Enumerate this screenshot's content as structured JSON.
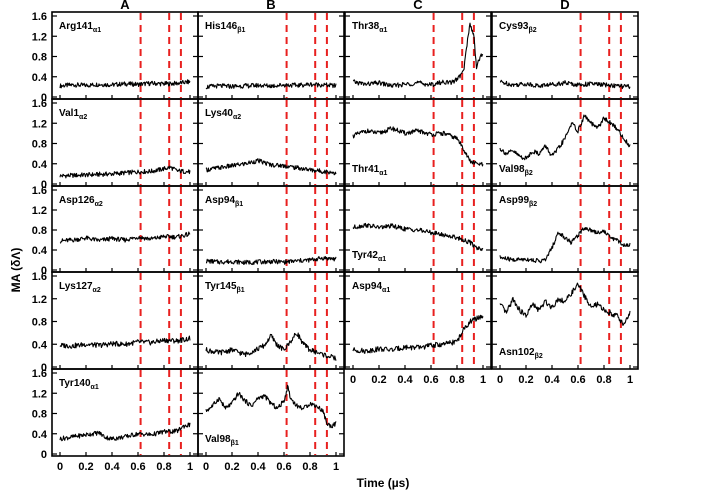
{
  "chart_data": {
    "type": "line",
    "ylabel": "MA (δΛ)",
    "xlabel": "Time  (µs)",
    "xlim": [
      0,
      1
    ],
    "ylim": [
      0,
      1.6
    ],
    "x_ticks": [
      "0",
      "0.2",
      "0.4",
      "0.6",
      "0.8",
      "1"
    ],
    "y_ticks": [
      "0",
      "0.4",
      "0.8",
      "1.2",
      "1.6"
    ],
    "dashed_vertical_lines_x": [
      0.62,
      0.84,
      0.93
    ],
    "columns": [
      "A",
      "B",
      "C",
      "D"
    ],
    "panels": [
      {
        "col": 0,
        "row": 0,
        "label": "Arg141",
        "sub": "α1",
        "label_pos": "top-left",
        "trace": [
          [
            0,
            0.22
          ],
          [
            0.1,
            0.24
          ],
          [
            0.2,
            0.23
          ],
          [
            0.3,
            0.25
          ],
          [
            0.4,
            0.24
          ],
          [
            0.5,
            0.26
          ],
          [
            0.6,
            0.25
          ],
          [
            0.7,
            0.27
          ],
          [
            0.8,
            0.26
          ],
          [
            0.9,
            0.27
          ],
          [
            1,
            0.3
          ]
        ]
      },
      {
        "col": 0,
        "row": 1,
        "label": "Val1",
        "sub": "α2",
        "label_pos": "top-left",
        "trace": [
          [
            0,
            0.16
          ],
          [
            0.1,
            0.17
          ],
          [
            0.2,
            0.18
          ],
          [
            0.3,
            0.19
          ],
          [
            0.4,
            0.2
          ],
          [
            0.5,
            0.22
          ],
          [
            0.6,
            0.24
          ],
          [
            0.7,
            0.25
          ],
          [
            0.8,
            0.3
          ],
          [
            0.85,
            0.33
          ],
          [
            0.9,
            0.26
          ],
          [
            1,
            0.24
          ]
        ]
      },
      {
        "col": 0,
        "row": 2,
        "label": "Asp126",
        "sub": "α2",
        "label_pos": "top-left",
        "trace": [
          [
            0,
            0.58
          ],
          [
            0.1,
            0.6
          ],
          [
            0.2,
            0.64
          ],
          [
            0.3,
            0.59
          ],
          [
            0.4,
            0.63
          ],
          [
            0.5,
            0.6
          ],
          [
            0.6,
            0.66
          ],
          [
            0.7,
            0.62
          ],
          [
            0.8,
            0.67
          ],
          [
            0.9,
            0.66
          ],
          [
            1,
            0.72
          ]
        ]
      },
      {
        "col": 0,
        "row": 3,
        "label": "Lys127",
        "sub": "α2",
        "label_pos": "top-left",
        "trace": [
          [
            0,
            0.38
          ],
          [
            0.1,
            0.37
          ],
          [
            0.2,
            0.4
          ],
          [
            0.3,
            0.38
          ],
          [
            0.4,
            0.41
          ],
          [
            0.5,
            0.4
          ],
          [
            0.6,
            0.44
          ],
          [
            0.7,
            0.43
          ],
          [
            0.8,
            0.47
          ],
          [
            0.9,
            0.46
          ],
          [
            1,
            0.5
          ]
        ]
      },
      {
        "col": 0,
        "row": 4,
        "label": "Tyr140",
        "sub": "α1",
        "label_pos": "top-left",
        "trace": [
          [
            0,
            0.3
          ],
          [
            0.1,
            0.34
          ],
          [
            0.2,
            0.38
          ],
          [
            0.3,
            0.42
          ],
          [
            0.35,
            0.33
          ],
          [
            0.4,
            0.3
          ],
          [
            0.5,
            0.34
          ],
          [
            0.6,
            0.4
          ],
          [
            0.7,
            0.38
          ],
          [
            0.8,
            0.44
          ],
          [
            0.9,
            0.45
          ],
          [
            0.95,
            0.55
          ],
          [
            1,
            0.58
          ]
        ]
      },
      {
        "col": 1,
        "row": 0,
        "label": "His146",
        "sub": "β1",
        "label_pos": "top-left",
        "trace": [
          [
            0,
            0.2
          ],
          [
            0.1,
            0.22
          ],
          [
            0.2,
            0.21
          ],
          [
            0.3,
            0.22
          ],
          [
            0.4,
            0.23
          ],
          [
            0.5,
            0.22
          ],
          [
            0.6,
            0.24
          ],
          [
            0.7,
            0.23
          ],
          [
            0.8,
            0.25
          ],
          [
            0.9,
            0.24
          ],
          [
            1,
            0.22
          ]
        ]
      },
      {
        "col": 1,
        "row": 1,
        "label": "Lys40",
        "sub": "α2",
        "label_pos": "top-left",
        "trace": [
          [
            0,
            0.28
          ],
          [
            0.1,
            0.32
          ],
          [
            0.2,
            0.36
          ],
          [
            0.3,
            0.4
          ],
          [
            0.4,
            0.46
          ],
          [
            0.45,
            0.42
          ],
          [
            0.5,
            0.38
          ],
          [
            0.6,
            0.36
          ],
          [
            0.7,
            0.32
          ],
          [
            0.8,
            0.28
          ],
          [
            0.9,
            0.25
          ],
          [
            1,
            0.22
          ]
        ]
      },
      {
        "col": 1,
        "row": 2,
        "label": "Asp94",
        "sub": "β1",
        "label_pos": "top-left",
        "trace": [
          [
            0,
            0.18
          ],
          [
            0.1,
            0.16
          ],
          [
            0.2,
            0.17
          ],
          [
            0.3,
            0.15
          ],
          [
            0.4,
            0.16
          ],
          [
            0.5,
            0.17
          ],
          [
            0.6,
            0.16
          ],
          [
            0.7,
            0.18
          ],
          [
            0.8,
            0.2
          ],
          [
            0.9,
            0.24
          ],
          [
            1,
            0.22
          ]
        ]
      },
      {
        "col": 1,
        "row": 3,
        "label": "Tyr145",
        "sub": "β1",
        "label_pos": "top-left",
        "trace": [
          [
            0,
            0.3
          ],
          [
            0.1,
            0.25
          ],
          [
            0.2,
            0.3
          ],
          [
            0.3,
            0.22
          ],
          [
            0.4,
            0.32
          ],
          [
            0.45,
            0.38
          ],
          [
            0.5,
            0.55
          ],
          [
            0.55,
            0.38
          ],
          [
            0.6,
            0.3
          ],
          [
            0.65,
            0.45
          ],
          [
            0.7,
            0.6
          ],
          [
            0.75,
            0.4
          ],
          [
            0.8,
            0.3
          ],
          [
            0.9,
            0.22
          ],
          [
            1,
            0.15
          ]
        ]
      },
      {
        "col": 1,
        "row": 4,
        "label": "Val98",
        "sub": "β1",
        "label_pos": "bottom-left",
        "trace": [
          [
            0,
            0.85
          ],
          [
            0.05,
            0.95
          ],
          [
            0.1,
            1.1
          ],
          [
            0.15,
            0.9
          ],
          [
            0.2,
            1.0
          ],
          [
            0.25,
            1.2
          ],
          [
            0.3,
            1.05
          ],
          [
            0.35,
            0.95
          ],
          [
            0.4,
            1.1
          ],
          [
            0.45,
            1.15
          ],
          [
            0.5,
            1.0
          ],
          [
            0.55,
            0.9
          ],
          [
            0.6,
            1.05
          ],
          [
            0.63,
            1.35
          ],
          [
            0.65,
            1.1
          ],
          [
            0.7,
            0.95
          ],
          [
            0.75,
            0.9
          ],
          [
            0.8,
            1.0
          ],
          [
            0.85,
            0.95
          ],
          [
            0.9,
            0.85
          ],
          [
            0.93,
            0.6
          ],
          [
            0.96,
            0.55
          ],
          [
            1,
            0.6
          ]
        ]
      },
      {
        "col": 2,
        "row": 0,
        "label": "Thr38",
        "sub": "α1",
        "label_pos": "top-left",
        "trace": [
          [
            0,
            0.3
          ],
          [
            0.1,
            0.25
          ],
          [
            0.2,
            0.28
          ],
          [
            0.3,
            0.22
          ],
          [
            0.4,
            0.25
          ],
          [
            0.5,
            0.28
          ],
          [
            0.6,
            0.24
          ],
          [
            0.7,
            0.3
          ],
          [
            0.75,
            0.28
          ],
          [
            0.8,
            0.35
          ],
          [
            0.85,
            0.5
          ],
          [
            0.88,
            1.1
          ],
          [
            0.9,
            1.45
          ],
          [
            0.93,
            1.2
          ],
          [
            0.95,
            0.6
          ],
          [
            0.98,
            0.8
          ],
          [
            1,
            0.85
          ]
        ]
      },
      {
        "col": 2,
        "row": 1,
        "label": "Thr41",
        "sub": "α1",
        "label_pos": "bottom-left",
        "trace": [
          [
            0,
            0.95
          ],
          [
            0.1,
            1.05
          ],
          [
            0.2,
            1.0
          ],
          [
            0.3,
            1.1
          ],
          [
            0.4,
            1.0
          ],
          [
            0.5,
            1.05
          ],
          [
            0.6,
            0.98
          ],
          [
            0.7,
            1.0
          ],
          [
            0.8,
            0.9
          ],
          [
            0.85,
            0.7
          ],
          [
            0.9,
            0.45
          ],
          [
            0.95,
            0.4
          ],
          [
            1,
            0.38
          ]
        ]
      },
      {
        "col": 2,
        "row": 2,
        "label": "Tyr42",
        "sub": "α1",
        "label_pos": "bottom-left",
        "trace": [
          [
            0,
            0.85
          ],
          [
            0.1,
            0.9
          ],
          [
            0.2,
            0.85
          ],
          [
            0.3,
            0.88
          ],
          [
            0.4,
            0.82
          ],
          [
            0.5,
            0.8
          ],
          [
            0.6,
            0.75
          ],
          [
            0.7,
            0.7
          ],
          [
            0.8,
            0.65
          ],
          [
            0.85,
            0.6
          ],
          [
            0.9,
            0.55
          ],
          [
            0.95,
            0.45
          ],
          [
            1,
            0.42
          ]
        ]
      },
      {
        "col": 2,
        "row": 3,
        "label": "Asp94",
        "sub": "α1",
        "label_pos": "top-left",
        "trace": [
          [
            0,
            0.3
          ],
          [
            0.1,
            0.28
          ],
          [
            0.2,
            0.32
          ],
          [
            0.3,
            0.3
          ],
          [
            0.4,
            0.35
          ],
          [
            0.5,
            0.34
          ],
          [
            0.6,
            0.38
          ],
          [
            0.7,
            0.4
          ],
          [
            0.8,
            0.45
          ],
          [
            0.85,
            0.65
          ],
          [
            0.9,
            0.8
          ],
          [
            0.95,
            0.85
          ],
          [
            1,
            0.9
          ]
        ]
      },
      {
        "col": 3,
        "row": 0,
        "label": "Cys93",
        "sub": "β2",
        "label_pos": "top-left",
        "trace": [
          [
            0,
            0.3
          ],
          [
            0.1,
            0.24
          ],
          [
            0.2,
            0.26
          ],
          [
            0.3,
            0.22
          ],
          [
            0.4,
            0.25
          ],
          [
            0.5,
            0.28
          ],
          [
            0.6,
            0.24
          ],
          [
            0.7,
            0.26
          ],
          [
            0.8,
            0.24
          ],
          [
            0.9,
            0.22
          ],
          [
            1,
            0.2
          ]
        ]
      },
      {
        "col": 3,
        "row": 1,
        "label": "Val98",
        "sub": "β2",
        "label_pos": "bottom-left",
        "trace": [
          [
            0,
            0.7
          ],
          [
            0.05,
            0.6
          ],
          [
            0.1,
            0.65
          ],
          [
            0.15,
            0.55
          ],
          [
            0.2,
            0.5
          ],
          [
            0.25,
            0.65
          ],
          [
            0.3,
            0.6
          ],
          [
            0.35,
            0.75
          ],
          [
            0.4,
            0.55
          ],
          [
            0.45,
            0.7
          ],
          [
            0.5,
            0.9
          ],
          [
            0.55,
            1.2
          ],
          [
            0.6,
            1.05
          ],
          [
            0.65,
            1.35
          ],
          [
            0.7,
            1.2
          ],
          [
            0.75,
            1.1
          ],
          [
            0.8,
            1.3
          ],
          [
            0.85,
            1.2
          ],
          [
            0.9,
            1.1
          ],
          [
            0.95,
            0.9
          ],
          [
            1,
            0.75
          ]
        ]
      },
      {
        "col": 3,
        "row": 2,
        "label": "Asp99",
        "sub": "β2",
        "label_pos": "top-left",
        "trace": [
          [
            0,
            0.25
          ],
          [
            0.1,
            0.2
          ],
          [
            0.2,
            0.22
          ],
          [
            0.3,
            0.18
          ],
          [
            0.35,
            0.2
          ],
          [
            0.4,
            0.45
          ],
          [
            0.45,
            0.75
          ],
          [
            0.5,
            0.65
          ],
          [
            0.55,
            0.55
          ],
          [
            0.6,
            0.7
          ],
          [
            0.65,
            0.85
          ],
          [
            0.7,
            0.8
          ],
          [
            0.75,
            0.75
          ],
          [
            0.8,
            0.78
          ],
          [
            0.85,
            0.65
          ],
          [
            0.9,
            0.6
          ],
          [
            0.95,
            0.5
          ],
          [
            1,
            0.5
          ]
        ]
      },
      {
        "col": 3,
        "row": 3,
        "label": "Asn102",
        "sub": "β2",
        "label_pos": "bottom-left",
        "trace": [
          [
            0,
            1.1
          ],
          [
            0.05,
            0.95
          ],
          [
            0.1,
            1.2
          ],
          [
            0.15,
            1.0
          ],
          [
            0.2,
            0.9
          ],
          [
            0.25,
            1.1
          ],
          [
            0.3,
            1.0
          ],
          [
            0.35,
            1.15
          ],
          [
            0.4,
            1.05
          ],
          [
            0.45,
            1.2
          ],
          [
            0.5,
            1.15
          ],
          [
            0.55,
            1.3
          ],
          [
            0.6,
            1.45
          ],
          [
            0.65,
            1.25
          ],
          [
            0.7,
            1.05
          ],
          [
            0.75,
            1.1
          ],
          [
            0.8,
            1.0
          ],
          [
            0.85,
            0.95
          ],
          [
            0.9,
            0.9
          ],
          [
            0.95,
            0.75
          ],
          [
            1,
            0.95
          ]
        ]
      }
    ]
  }
}
